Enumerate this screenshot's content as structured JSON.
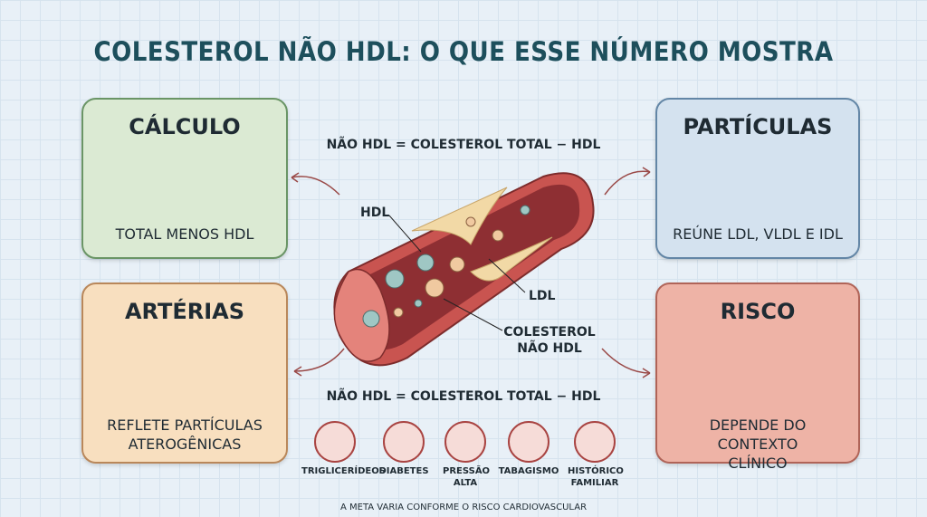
{
  "header": {
    "title": "COLESTEROL NÃO HDL: O QUE ESSE NÚMERO MOSTRA"
  },
  "cards": [
    {
      "title": "CÁLCULO",
      "text": "TOTAL MENOS HDL"
    },
    {
      "title": "PARTÍCULAS",
      "text": "REÚNE LDL, VLDL E IDL"
    },
    {
      "title": "ARTÉRIAS",
      "text": "REFLETE PARTÍCULAS ATEROGÊNICAS"
    },
    {
      "title": "RISCO",
      "text": "DEPENDE DO CONTEXTO CLÍNICO"
    }
  ],
  "formula_top": "NÃO HDL = COLESTEROL TOTAL − HDL",
  "formula_bottom": "NÃO HDL = COLESTEROL TOTAL − HDL",
  "vessel_labels": [
    "HDL",
    "LDL",
    "COLESTEROL NÃO HDL"
  ],
  "risk_factors": [
    "TRIGLICERÍDEOS",
    "DIABETES",
    "PRESSÃO ALTA",
    "TABAGISMO",
    "HISTÓRICO FAMILIAR"
  ],
  "footer": "A META VARIA CONFORME O RISCO CARDIOVASCULAR"
}
